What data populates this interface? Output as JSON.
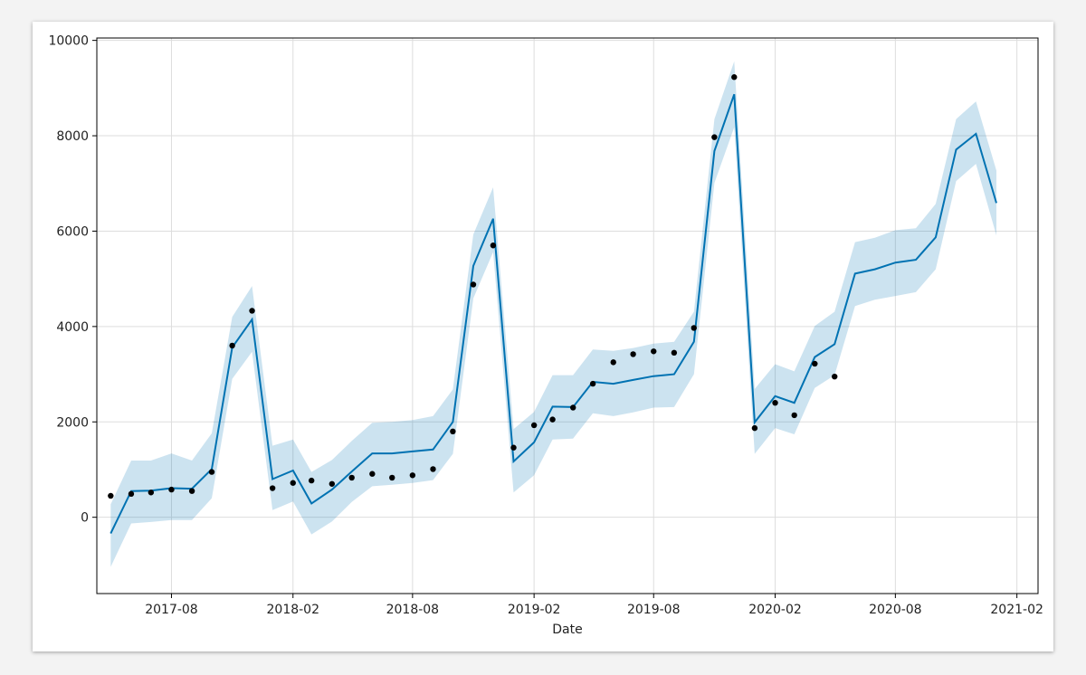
{
  "chart_data": {
    "type": "line",
    "xlabel": "Date",
    "ylabel": "",
    "ylim": [
      -1600,
      10050
    ],
    "xlim": [
      "2017-04-10",
      "2021-03-05"
    ],
    "grid": true,
    "x_ticks": [
      "2017-08",
      "2018-02",
      "2018-08",
      "2019-02",
      "2019-08",
      "2020-02",
      "2020-08",
      "2021-02"
    ],
    "y_ticks": [
      0,
      2000,
      4000,
      6000,
      8000,
      10000
    ],
    "colors": {
      "forecast_line": "#0072b2",
      "uncertainty_band": "#0072b2",
      "observed_points": "#000000",
      "grid": "#dddddd"
    },
    "series": [
      {
        "role": "observed",
        "style": "points",
        "x": [
          "2017-05-01",
          "2017-06-01",
          "2017-07-01",
          "2017-08-01",
          "2017-09-01",
          "2017-10-01",
          "2017-11-01",
          "2017-12-01",
          "2018-01-01",
          "2018-02-01",
          "2018-03-01",
          "2018-04-01",
          "2018-05-01",
          "2018-06-01",
          "2018-07-01",
          "2018-08-01",
          "2018-09-01",
          "2018-10-01",
          "2018-11-01",
          "2018-12-01",
          "2019-01-01",
          "2019-02-01",
          "2019-03-01",
          "2019-04-01",
          "2019-05-01",
          "2019-06-01",
          "2019-07-01",
          "2019-08-01",
          "2019-09-01",
          "2019-10-01",
          "2019-11-01",
          "2019-12-01",
          "2020-01-01",
          "2020-02-01",
          "2020-03-01",
          "2020-04-01",
          "2020-05-01"
        ],
        "y": [
          450,
          490,
          520,
          580,
          550,
          950,
          3600,
          4330,
          610,
          720,
          770,
          700,
          830,
          910,
          830,
          880,
          1010,
          1800,
          4880,
          5700,
          1460,
          1930,
          2050,
          2300,
          2800,
          3250,
          3420,
          3480,
          3450,
          3970,
          7970,
          9230,
          1870,
          2400,
          2140,
          3220,
          2950
        ]
      },
      {
        "role": "forecast",
        "style": "line",
        "x": [
          "2017-05-01",
          "2017-06-01",
          "2017-07-01",
          "2017-08-01",
          "2017-09-01",
          "2017-10-01",
          "2017-11-01",
          "2017-12-01",
          "2018-01-01",
          "2018-02-01",
          "2018-03-01",
          "2018-04-01",
          "2018-05-01",
          "2018-06-01",
          "2018-07-01",
          "2018-08-01",
          "2018-09-01",
          "2018-10-01",
          "2018-11-01",
          "2018-12-01",
          "2019-01-01",
          "2019-02-01",
          "2019-03-01",
          "2019-04-01",
          "2019-05-01",
          "2019-06-01",
          "2019-07-01",
          "2019-08-01",
          "2019-09-01",
          "2019-10-01",
          "2019-11-01",
          "2019-12-01",
          "2020-01-01",
          "2020-02-01",
          "2020-03-01",
          "2020-04-01",
          "2020-05-01",
          "2020-06-01",
          "2020-07-01",
          "2020-08-01",
          "2020-09-01",
          "2020-10-01",
          "2020-11-01",
          "2020-12-01",
          "2021-01-01"
        ],
        "y": [
          -340,
          550,
          560,
          610,
          600,
          1010,
          3560,
          4150,
          800,
          980,
          290,
          580,
          960,
          1340,
          1340,
          1380,
          1420,
          2000,
          5270,
          6260,
          1170,
          1570,
          2320,
          2310,
          2840,
          2800,
          2880,
          2960,
          3000,
          3680,
          7680,
          8870,
          1990,
          2540,
          2400,
          3360,
          3630,
          5110,
          5200,
          5340,
          5400,
          5870,
          7710,
          8040,
          6590
        ]
      },
      {
        "role": "uncertainty_upper",
        "style": "band",
        "y": [
          270,
          1190,
          1190,
          1340,
          1190,
          1760,
          4200,
          4850,
          1500,
          1630,
          950,
          1200,
          1600,
          1980,
          2000,
          2040,
          2120,
          2680,
          5930,
          6920,
          1850,
          2210,
          2980,
          2980,
          3520,
          3490,
          3550,
          3640,
          3680,
          4310,
          8350,
          9560,
          2690,
          3210,
          3060,
          4010,
          4310,
          5770,
          5860,
          6020,
          6060,
          6570,
          8350,
          8720,
          7270
        ]
      },
      {
        "role": "uncertainty_lower",
        "style": "band",
        "y": [
          -1040,
          -130,
          -100,
          -60,
          -60,
          400,
          2900,
          3470,
          150,
          330,
          -360,
          -90,
          320,
          650,
          680,
          720,
          780,
          1330,
          4590,
          5560,
          520,
          880,
          1630,
          1650,
          2180,
          2120,
          2200,
          2300,
          2310,
          3000,
          7010,
          8180,
          1330,
          1870,
          1740,
          2710,
          2980,
          4430,
          4560,
          4640,
          4720,
          5200,
          7050,
          7410,
          5910
        ]
      }
    ]
  }
}
